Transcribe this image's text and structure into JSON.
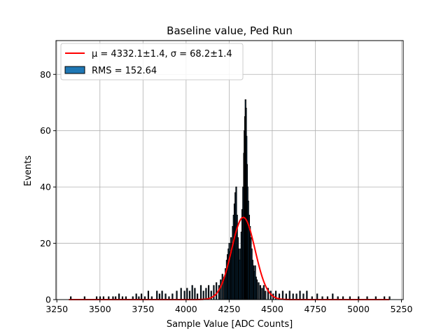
{
  "chart_data": {
    "type": "bar",
    "title": "Baseline value, Ped Run",
    "xlabel": "Sample Value [ADC Counts]",
    "ylabel": "Events",
    "xlim": [
      3245,
      5260
    ],
    "ylim": [
      0,
      92
    ],
    "grid": true,
    "legend_position": "top-left",
    "x_ticks": [
      "3250",
      "3500",
      "3750",
      "4000",
      "4250",
      "4500",
      "4750",
      "5000",
      "5250"
    ],
    "x_tick_values": [
      3250,
      3500,
      3750,
      4000,
      4250,
      4500,
      4750,
      5000,
      5250
    ],
    "y_ticks": [
      "0",
      "20",
      "40",
      "60",
      "80"
    ],
    "y_tick_values": [
      0,
      20,
      40,
      60,
      80
    ],
    "series": [
      {
        "name": "RMS = 152.64",
        "kind": "histogram",
        "color": "#1f77b4",
        "edge_color": "#000000",
        "values": [
          [
            3330,
            1
          ],
          [
            3410,
            1
          ],
          [
            3480,
            1
          ],
          [
            3500,
            1
          ],
          [
            3520,
            1
          ],
          [
            3550,
            1
          ],
          [
            3575,
            1
          ],
          [
            3590,
            1
          ],
          [
            3610,
            2
          ],
          [
            3630,
            1
          ],
          [
            3650,
            1
          ],
          [
            3690,
            1
          ],
          [
            3710,
            2
          ],
          [
            3725,
            1
          ],
          [
            3740,
            2
          ],
          [
            3760,
            1
          ],
          [
            3780,
            3
          ],
          [
            3800,
            1
          ],
          [
            3830,
            3
          ],
          [
            3845,
            2
          ],
          [
            3860,
            3
          ],
          [
            3880,
            2
          ],
          [
            3900,
            1
          ],
          [
            3920,
            2
          ],
          [
            3945,
            3
          ],
          [
            3970,
            4
          ],
          [
            3990,
            3
          ],
          [
            4005,
            4
          ],
          [
            4020,
            3
          ],
          [
            4035,
            5
          ],
          [
            4050,
            4
          ],
          [
            4065,
            2
          ],
          [
            4085,
            5
          ],
          [
            4100,
            3
          ],
          [
            4115,
            4
          ],
          [
            4130,
            5
          ],
          [
            4145,
            3
          ],
          [
            4160,
            5
          ],
          [
            4175,
            6
          ],
          [
            4190,
            5
          ],
          [
            4200,
            7
          ],
          [
            4210,
            9
          ],
          [
            4220,
            8
          ],
          [
            4228,
            11
          ],
          [
            4235,
            14
          ],
          [
            4240,
            16
          ],
          [
            4245,
            18
          ],
          [
            4250,
            20
          ],
          [
            4255,
            17
          ],
          [
            4260,
            22
          ],
          [
            4265,
            20
          ],
          [
            4270,
            26
          ],
          [
            4275,
            30
          ],
          [
            4280,
            34
          ],
          [
            4285,
            38
          ],
          [
            4290,
            40
          ],
          [
            4295,
            30
          ],
          [
            4300,
            22
          ],
          [
            4305,
            18
          ],
          [
            4310,
            14
          ],
          [
            4315,
            18
          ],
          [
            4320,
            24
          ],
          [
            4325,
            32
          ],
          [
            4330,
            40
          ],
          [
            4335,
            52
          ],
          [
            4338,
            60
          ],
          [
            4341,
            65
          ],
          [
            4344,
            71
          ],
          [
            4347,
            68
          ],
          [
            4350,
            58
          ],
          [
            4353,
            48
          ],
          [
            4356,
            40
          ],
          [
            4360,
            35
          ],
          [
            4365,
            30
          ],
          [
            4370,
            26
          ],
          [
            4375,
            22
          ],
          [
            4380,
            18
          ],
          [
            4385,
            14
          ],
          [
            4390,
            12
          ],
          [
            4395,
            10
          ],
          [
            4400,
            12
          ],
          [
            4405,
            8
          ],
          [
            4410,
            7
          ],
          [
            4420,
            6
          ],
          [
            4430,
            5
          ],
          [
            4440,
            4
          ],
          [
            4450,
            5
          ],
          [
            4460,
            3
          ],
          [
            4475,
            4
          ],
          [
            4490,
            3
          ],
          [
            4505,
            2
          ],
          [
            4520,
            3
          ],
          [
            4540,
            2
          ],
          [
            4560,
            3
          ],
          [
            4580,
            2
          ],
          [
            4600,
            3
          ],
          [
            4620,
            2
          ],
          [
            4640,
            2
          ],
          [
            4660,
            3
          ],
          [
            4680,
            2
          ],
          [
            4700,
            3
          ],
          [
            4730,
            1
          ],
          [
            4760,
            2
          ],
          [
            4790,
            1
          ],
          [
            4820,
            1
          ],
          [
            4850,
            2
          ],
          [
            4880,
            1
          ],
          [
            4910,
            1
          ],
          [
            4950,
            1
          ],
          [
            5000,
            1
          ],
          [
            5050,
            1
          ],
          [
            5100,
            1
          ],
          [
            5150,
            1
          ],
          [
            5180,
            1
          ]
        ]
      },
      {
        "name": "$\\mu = 4332.1 \\pm 1.4$, $\\sigma = 68.2 \\pm 1.4$",
        "kind": "gaussian_fit",
        "color": "#ff0000",
        "mu": 4332.1,
        "sigma": 68.2,
        "amplitude": 29.2,
        "x_range": [
          3320,
          5180
        ]
      }
    ],
    "legend": [
      {
        "label": "μ = 4332.1±1.4, σ = 68.2±1.4",
        "kind": "line",
        "color": "#ff0000"
      },
      {
        "label": "RMS = 152.64",
        "kind": "patch",
        "color": "#1f77b4"
      }
    ]
  }
}
